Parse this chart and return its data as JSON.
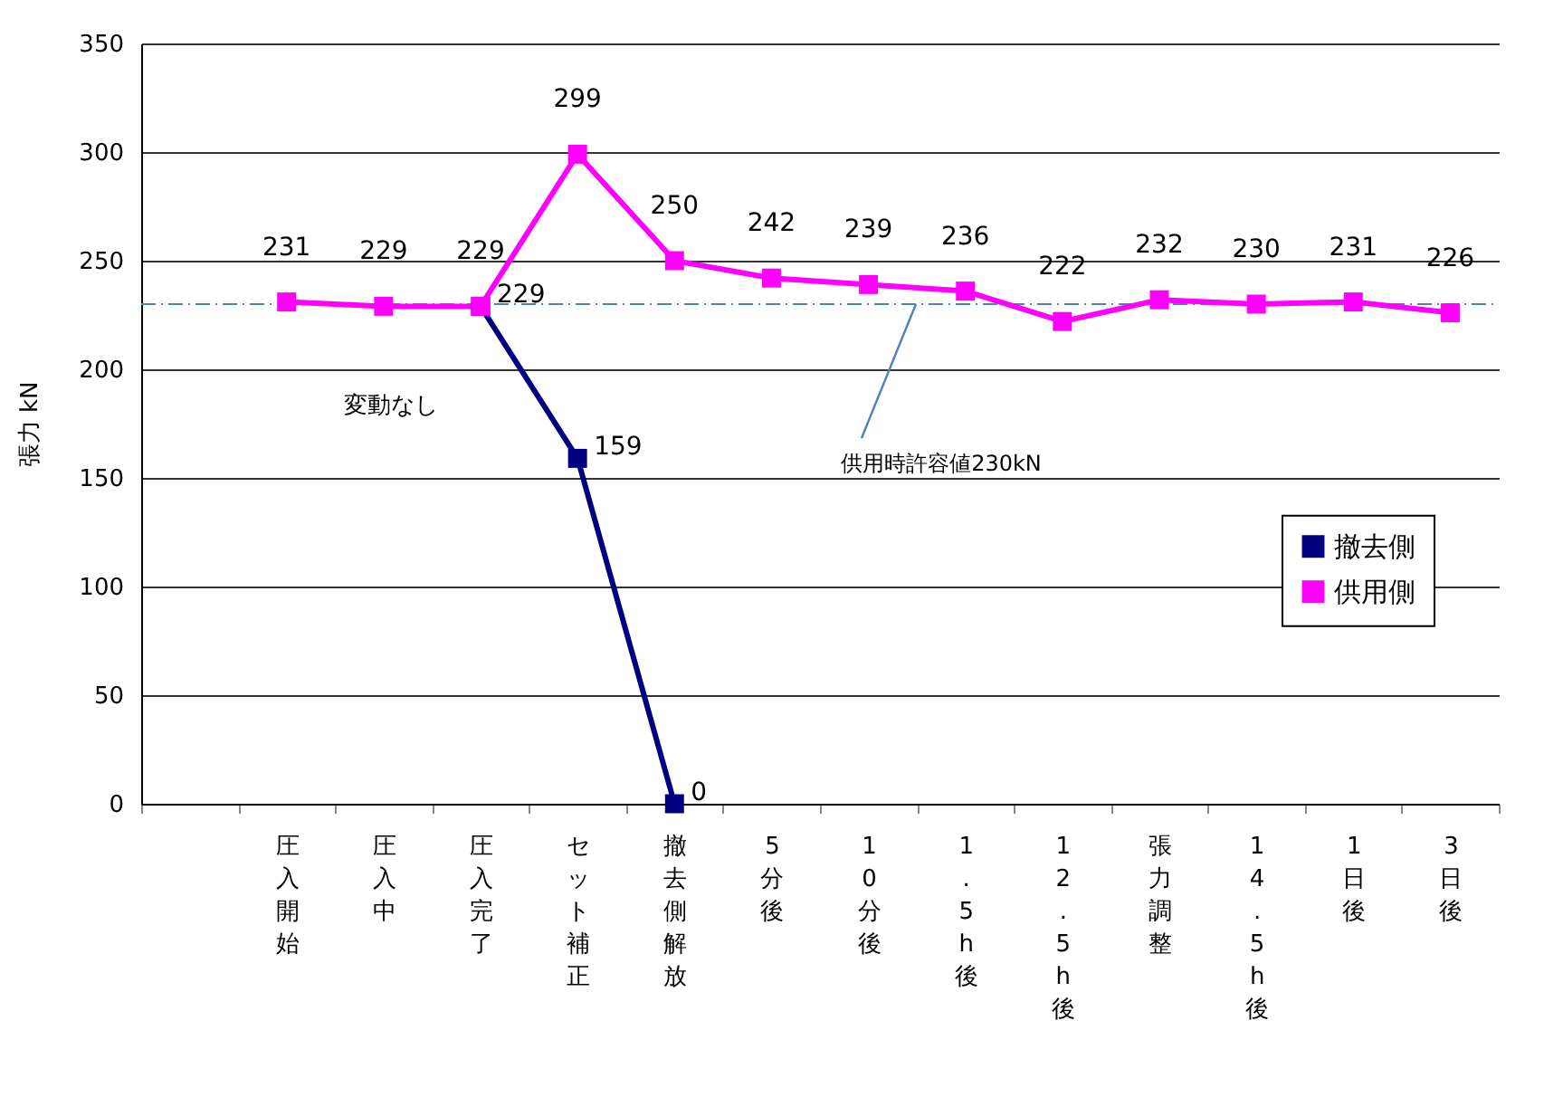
{
  "chart_data": {
    "type": "line",
    "ylabel": "張力 kN",
    "categories": [
      null,
      "圧入開始",
      "圧入中",
      "圧入完了",
      "セット補正",
      "撤去側解放",
      "5分後",
      "10分後",
      "1.5h後",
      "12.5h後",
      "張力調整",
      "14.5h後",
      "1日後",
      "3日後"
    ],
    "series": [
      {
        "name": "撤去側",
        "color": "#000080",
        "values": [
          null,
          null,
          null,
          229,
          159,
          0,
          null,
          null,
          null,
          null,
          null,
          null,
          null,
          null
        ]
      },
      {
        "name": "供用側",
        "color": "#ff00ff",
        "values": [
          null,
          231,
          229,
          229,
          299,
          250,
          242,
          239,
          236,
          222,
          232,
          230,
          231,
          226
        ]
      }
    ],
    "ylim": [
      0,
      350
    ],
    "yticks": [
      0,
      50,
      100,
      150,
      200,
      250,
      300,
      350
    ],
    "grid": "y",
    "legend": "right",
    "marker": "square",
    "line_style": "solid",
    "data_labels": true,
    "ref_lines": [
      {
        "axis": "y",
        "value": 230,
        "label": "供用時許容値230kN",
        "color": "#4f81bd",
        "line_style": "dashdot"
      }
    ],
    "annotations": [
      "変動なし"
    ]
  }
}
